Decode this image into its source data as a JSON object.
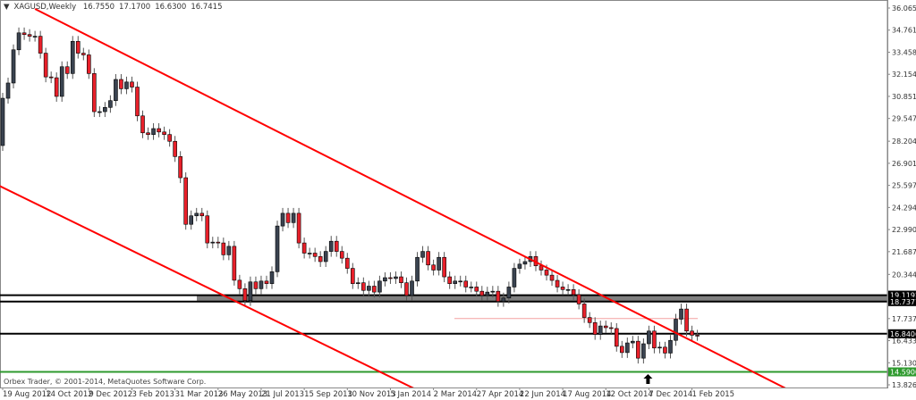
{
  "header": {
    "dropdown_icon": "triangle-down-icon",
    "symbol": "XAGUSD,Weekly",
    "open": "16.7550",
    "high": "17.1700",
    "low": "16.6300",
    "close": "16.7415"
  },
  "footer": {
    "copyright": "Orbex Trader, © 2001-2014, MetaQuotes Software Corp."
  },
  "chart_data": {
    "type": "candlestick",
    "period": "weekly",
    "first_bar_date": "2012-08-19",
    "first_open": 27.95,
    "closes": [
      30.74,
      31.64,
      33.6,
      34.6,
      34.5,
      34.4,
      34.4,
      33.4,
      32.0,
      31.95,
      30.85,
      32.6,
      32.2,
      34.1,
      33.4,
      33.3,
      32.2,
      29.95,
      29.95,
      30.2,
      30.6,
      31.85,
      31.3,
      31.7,
      31.4,
      29.7,
      28.7,
      28.6,
      28.95,
      28.75,
      28.6,
      28.2,
      27.3,
      26.05,
      23.3,
      23.8,
      23.95,
      23.8,
      22.2,
      22.25,
      22.2,
      21.5,
      22.0,
      20.0,
      19.5,
      18.8,
      19.9,
      19.5,
      19.95,
      19.8,
      20.5,
      23.2,
      23.95,
      23.4,
      23.95,
      22.2,
      21.6,
      21.6,
      21.4,
      21.1,
      21.7,
      22.3,
      21.7,
      21.3,
      20.7,
      19.8,
      19.85,
      19.4,
      19.65,
      19.3,
      19.95,
      20.15,
      20.1,
      20.2,
      19.85,
      19.1,
      19.95,
      21.35,
      21.7,
      20.9,
      20.6,
      21.35,
      20.2,
      19.8,
      19.95,
      19.95,
      19.6,
      19.6,
      19.35,
      19.1,
      19.3,
      19.35,
      18.75,
      18.95,
      19.6,
      20.7,
      20.95,
      21.1,
      21.4,
      20.85,
      20.6,
      20.3,
      19.99,
      19.6,
      19.45,
      19.45,
      19.15,
      18.6,
      17.8,
      17.5,
      16.8,
      17.3,
      17.2,
      17.15,
      16.1,
      15.73,
      16.3,
      16.4,
      15.4,
      16.25,
      17.0,
      16.0,
      16.05,
      15.7,
      16.45,
      17.7,
      18.3,
      17.0,
      16.755,
      16.7415
    ],
    "ylim": [
      13.8265,
      36.065
    ],
    "y_ticks": [
      "36.0650",
      "34.7615",
      "33.4580",
      "32.1545",
      "30.8510",
      "29.5475",
      "28.2045",
      "26.9010",
      "25.5975",
      "24.2940",
      "22.9905",
      "21.6870",
      "20.3440",
      "17.7370",
      "16.4335",
      "15.1300",
      "13.8265"
    ],
    "x_ticks": [
      "19 Aug 2012",
      "14 Oct 2012",
      "9 Dec 2012",
      "3 Feb 2013",
      "31 Mar 2013",
      "26 May 2013",
      "21 Jul 2013",
      "15 Sep 2013",
      "10 Nov 2013",
      "5 Jan 2014",
      "2 Mar 2014",
      "27 Apr 2014",
      "22 Jun 2014",
      "17 Aug 2014",
      "12 Oct 2014",
      "7 Dec 2014",
      "1 Feb 2015"
    ],
    "support_zone": {
      "upper": "19.1192",
      "lower": "18.7377",
      "color": "#808080"
    },
    "horizontal_lines": [
      {
        "price": "16.8406",
        "color": "#000000"
      },
      {
        "price": "14.5900",
        "color": "#2e9a2e"
      },
      {
        "price": "17.7370",
        "color": "#f4a0a0"
      }
    ],
    "trendlines": [
      {
        "from": {
          "date": "2012-09-30",
          "price": 36.01
        },
        "to": {
          "date": "2015-06-14",
          "price": 13.36
        },
        "color": "#ff0000"
      },
      {
        "from": {
          "date": "2012-08-12",
          "price": 25.63
        },
        "to": {
          "date": "2014-02-16",
          "price": 13.36
        },
        "color": "#ff0000"
      }
    ],
    "arrow": {
      "date": "2014-12-07",
      "icon": "up-arrow-icon"
    },
    "colors": {
      "bull": "#3a4350",
      "bear": "#e8202a",
      "outline": "#000000"
    }
  }
}
